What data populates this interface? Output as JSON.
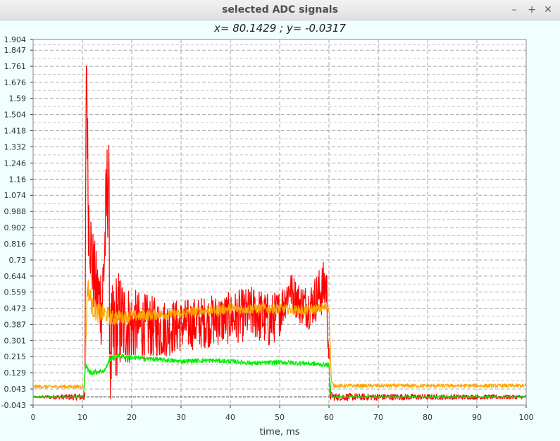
{
  "window": {
    "title": "selected ADC signals",
    "minimize_icon": "minimize-icon",
    "maximize_icon": "maximize-icon",
    "close_icon": "close-icon"
  },
  "readout": {
    "text": "x= 80.1429 ; y= -0.0317"
  },
  "chart_data": {
    "type": "line",
    "title": "",
    "xlabel": "time, ms",
    "ylabel": "",
    "xlim": [
      0,
      100
    ],
    "ylim": [
      -0.043,
      1.904
    ],
    "x_ticks": [
      0,
      10,
      20,
      30,
      40,
      50,
      60,
      70,
      80,
      90,
      100
    ],
    "y_ticks": [
      "-0.043",
      "0.043",
      "0.129",
      "0.215",
      "0.301",
      "0.387",
      "0.473",
      "0.559",
      "0.644",
      "0.73",
      "0.816",
      "0.902",
      "0.988",
      "1.074",
      "1.16",
      "1.246",
      "1.332",
      "1.418",
      "1.504",
      "1.59",
      "1.676",
      "1.761",
      "1.847",
      "1.904"
    ],
    "grid": true,
    "series": [
      {
        "color": "#ff0000",
        "points": [
          [
            0,
            0.0
          ],
          [
            10.5,
            0.0
          ],
          [
            10.8,
            1.9
          ],
          [
            11.2,
            1.0
          ],
          [
            12,
            0.7
          ],
          [
            13,
            0.55
          ],
          [
            14,
            0.5
          ],
          [
            15.3,
            1.24
          ],
          [
            15.6,
            0.2
          ],
          [
            17,
            0.4
          ],
          [
            20,
            0.38
          ],
          [
            25,
            0.36
          ],
          [
            30,
            0.38
          ],
          [
            35,
            0.4
          ],
          [
            40,
            0.42
          ],
          [
            45,
            0.45
          ],
          [
            48,
            0.4
          ],
          [
            50,
            0.45
          ],
          [
            52,
            0.58
          ],
          [
            54,
            0.5
          ],
          [
            56,
            0.48
          ],
          [
            58,
            0.55
          ],
          [
            59.5,
            0.6
          ],
          [
            60.2,
            0.02
          ],
          [
            61,
            0.0
          ],
          [
            100,
            0.0
          ]
        ],
        "spread": [
          [
            0,
            0.005
          ],
          [
            10.5,
            0.02
          ],
          [
            11,
            0.25
          ],
          [
            13,
            0.2
          ],
          [
            15.5,
            0.35
          ],
          [
            20,
            0.2
          ],
          [
            30,
            0.14
          ],
          [
            40,
            0.14
          ],
          [
            48,
            0.15
          ],
          [
            52,
            0.1
          ],
          [
            56,
            0.12
          ],
          [
            59.5,
            0.15
          ],
          [
            60.5,
            0.02
          ],
          [
            100,
            0.01
          ]
        ]
      },
      {
        "color": "#ffa500",
        "points": [
          [
            0,
            0.055
          ],
          [
            10.5,
            0.055
          ],
          [
            11,
            0.6
          ],
          [
            12,
            0.48
          ],
          [
            13,
            0.45
          ],
          [
            15,
            0.44
          ],
          [
            16,
            0.42
          ],
          [
            20,
            0.43
          ],
          [
            25,
            0.44
          ],
          [
            30,
            0.44
          ],
          [
            35,
            0.46
          ],
          [
            40,
            0.47
          ],
          [
            45,
            0.47
          ],
          [
            50,
            0.47
          ],
          [
            55,
            0.46
          ],
          [
            58,
            0.47
          ],
          [
            60,
            0.48
          ],
          [
            60.5,
            0.08
          ],
          [
            61,
            0.06
          ],
          [
            100,
            0.06
          ]
        ],
        "spread": [
          [
            0,
            0.01
          ],
          [
            10.5,
            0.01
          ],
          [
            11,
            0.06
          ],
          [
            20,
            0.03
          ],
          [
            60,
            0.025
          ],
          [
            60.5,
            0.01
          ],
          [
            100,
            0.01
          ]
        ]
      },
      {
        "color": "#00ee00",
        "points": [
          [
            0,
            0.0
          ],
          [
            10.2,
            0.0
          ],
          [
            10.6,
            0.17
          ],
          [
            11.5,
            0.13
          ],
          [
            14.5,
            0.14
          ],
          [
            15.5,
            0.2
          ],
          [
            17,
            0.22
          ],
          [
            20,
            0.21
          ],
          [
            25,
            0.2
          ],
          [
            30,
            0.19
          ],
          [
            35,
            0.195
          ],
          [
            40,
            0.19
          ],
          [
            45,
            0.18
          ],
          [
            50,
            0.185
          ],
          [
            55,
            0.18
          ],
          [
            60,
            0.17
          ],
          [
            60.4,
            0.01
          ],
          [
            61,
            0.0
          ],
          [
            100,
            0.0
          ]
        ],
        "spread": [
          [
            0,
            0.004
          ],
          [
            10.2,
            0.004
          ],
          [
            11,
            0.015
          ],
          [
            20,
            0.012
          ],
          [
            60,
            0.012
          ],
          [
            60.5,
            0.004
          ],
          [
            100,
            0.004
          ]
        ]
      },
      {
        "color": "#ffffff",
        "points": [
          [
            0,
            0.03
          ],
          [
            10.5,
            0.03
          ],
          [
            11,
            0.25
          ],
          [
            16,
            0.22
          ],
          [
            60,
            0.2
          ],
          [
            60.5,
            0.03
          ],
          [
            100,
            0.03
          ]
        ],
        "spread": [
          [
            0,
            0.003
          ],
          [
            100,
            0.003
          ]
        ]
      }
    ],
    "reference_line": {
      "y": 0.0,
      "color": "#000000",
      "dashed": true
    }
  }
}
